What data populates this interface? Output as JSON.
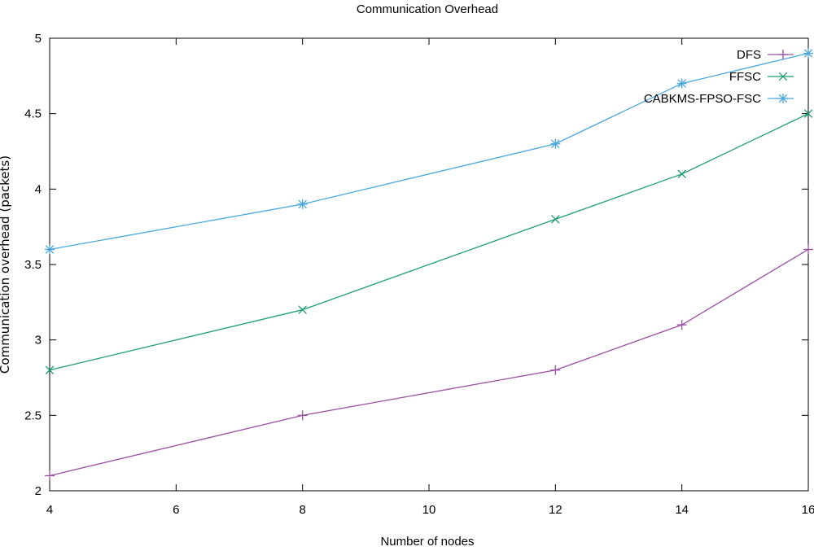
{
  "chart_data": {
    "type": "line",
    "title": "Communication Overhead",
    "xlabel": "Number of nodes",
    "ylabel": "Communication overhead (packets)",
    "xlim": [
      4,
      16
    ],
    "ylim": [
      2,
      5
    ],
    "xticks": [
      4,
      6,
      8,
      10,
      12,
      14,
      16
    ],
    "yticks": [
      2,
      2.5,
      3,
      3.5,
      4,
      4.5,
      5
    ],
    "ytick_labels": [
      "2",
      "2.5",
      "3",
      "3.5",
      "4",
      "4.5",
      "5"
    ],
    "grid": false,
    "legend_position": "top-right",
    "x": [
      4,
      8,
      12,
      14,
      16
    ],
    "series": [
      {
        "name": "DFS",
        "color": "#9a4fa0",
        "marker": "plus",
        "values": [
          2.1,
          2.5,
          2.8,
          3.1,
          3.6
        ]
      },
      {
        "name": "FFSC",
        "color": "#1b9e6e",
        "marker": "cross",
        "values": [
          2.8,
          3.2,
          3.8,
          4.1,
          4.5
        ]
      },
      {
        "name": "CABKMS-FPSO-FSC",
        "color": "#4aa8dc",
        "marker": "star",
        "values": [
          3.6,
          3.9,
          4.3,
          4.7,
          4.9
        ]
      }
    ]
  }
}
